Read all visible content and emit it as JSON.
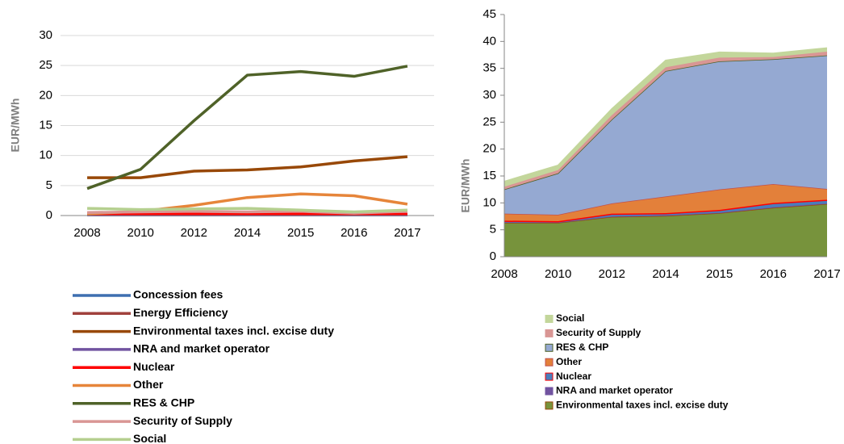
{
  "chart_data": [
    {
      "type": "line",
      "y_label": "EUR/MWh",
      "categories": [
        "2008",
        "2010",
        "2012",
        "2014",
        "2015",
        "2016",
        "2017"
      ],
      "ylim": [
        0,
        30
      ],
      "yticks": [
        0,
        5,
        10,
        15,
        20,
        25,
        30
      ],
      "grid": true,
      "series": [
        {
          "name": "Concession fees",
          "color": "#3e6fb0",
          "values": [
            0.1,
            0.1,
            0.1,
            0.1,
            0.1,
            0.1,
            0.1
          ]
        },
        {
          "name": "Energy Efficiency",
          "color": "#a0413c",
          "values": [
            0.2,
            0.2,
            0.2,
            0.2,
            0.2,
            0.2,
            0.2
          ]
        },
        {
          "name": "Environmental taxes incl. excise duty",
          "color": "#984807",
          "values": [
            6.3,
            6.3,
            7.4,
            7.6,
            8.1,
            9.1,
            9.8
          ]
        },
        {
          "name": "NRA and market operator",
          "color": "#7153a0",
          "values": [
            0.1,
            0.1,
            0.1,
            0.1,
            0.1,
            0.1,
            0.1
          ]
        },
        {
          "name": "Nuclear",
          "color": "#ff0000",
          "values": [
            0.2,
            0.2,
            0.3,
            0.3,
            0.3,
            0.2,
            0.2
          ]
        },
        {
          "name": "Other",
          "color": "#e6853a",
          "values": [
            0.3,
            0.7,
            1.7,
            3.0,
            3.6,
            3.3,
            1.9
          ]
        },
        {
          "name": "RES & CHP",
          "color": "#4f6228",
          "values": [
            4.5,
            7.7,
            15.8,
            23.4,
            24.0,
            23.2,
            24.9
          ]
        },
        {
          "name": "Security of Supply",
          "color": "#d99694",
          "values": [
            0.5,
            0.6,
            0.7,
            0.6,
            0.7,
            0.4,
            0.7
          ]
        },
        {
          "name": "Social",
          "color": "#b5cf8f",
          "values": [
            1.2,
            1.0,
            1.1,
            1.2,
            0.9,
            0.6,
            0.9
          ]
        }
      ]
    },
    {
      "type": "stacked_area",
      "y_label": "EUR/MWh",
      "categories": [
        "2008",
        "2010",
        "2012",
        "2014",
        "2015",
        "2016",
        "2017"
      ],
      "ylim": [
        0,
        45
      ],
      "yticks": [
        0,
        5,
        10,
        15,
        20,
        25,
        30,
        35,
        40,
        45
      ],
      "grid": false,
      "series": [
        {
          "name": "Environmental taxes incl. excise duty",
          "color": "#77933c",
          "line_color": "#984807",
          "values": [
            6.3,
            6.3,
            7.4,
            7.6,
            8.1,
            9.1,
            9.8
          ]
        },
        {
          "name": "NRA and market operator",
          "color": "#7153a0",
          "line_color": "#7153a0",
          "values": [
            0.1,
            0.1,
            0.1,
            0.1,
            0.1,
            0.1,
            0.1
          ]
        },
        {
          "name": "Nuclear",
          "color": "#4a7ebb",
          "line_color": "#ff0000",
          "values": [
            0.3,
            0.2,
            0.5,
            0.4,
            0.5,
            0.8,
            0.7
          ]
        },
        {
          "name": "Other",
          "color": "#e3803a",
          "line_color": "#c0504d",
          "values": [
            1.3,
            1.2,
            1.9,
            3.1,
            3.8,
            3.5,
            2.0
          ]
        },
        {
          "name": "RES & CHP",
          "color": "#95a9d2",
          "line_color": "#4f6228",
          "values": [
            4.5,
            7.7,
            15.6,
            23.3,
            23.8,
            23.2,
            24.8
          ]
        },
        {
          "name": "Security of Supply",
          "color": "#d99694",
          "line_color": "#d99694",
          "values": [
            0.5,
            0.6,
            0.8,
            0.7,
            0.7,
            0.4,
            0.7
          ]
        },
        {
          "name": "Social",
          "color": "#c3d69b",
          "line_color": "#c3d69b",
          "values": [
            1.0,
            0.9,
            1.2,
            1.3,
            1.0,
            0.7,
            0.7
          ]
        }
      ]
    }
  ]
}
